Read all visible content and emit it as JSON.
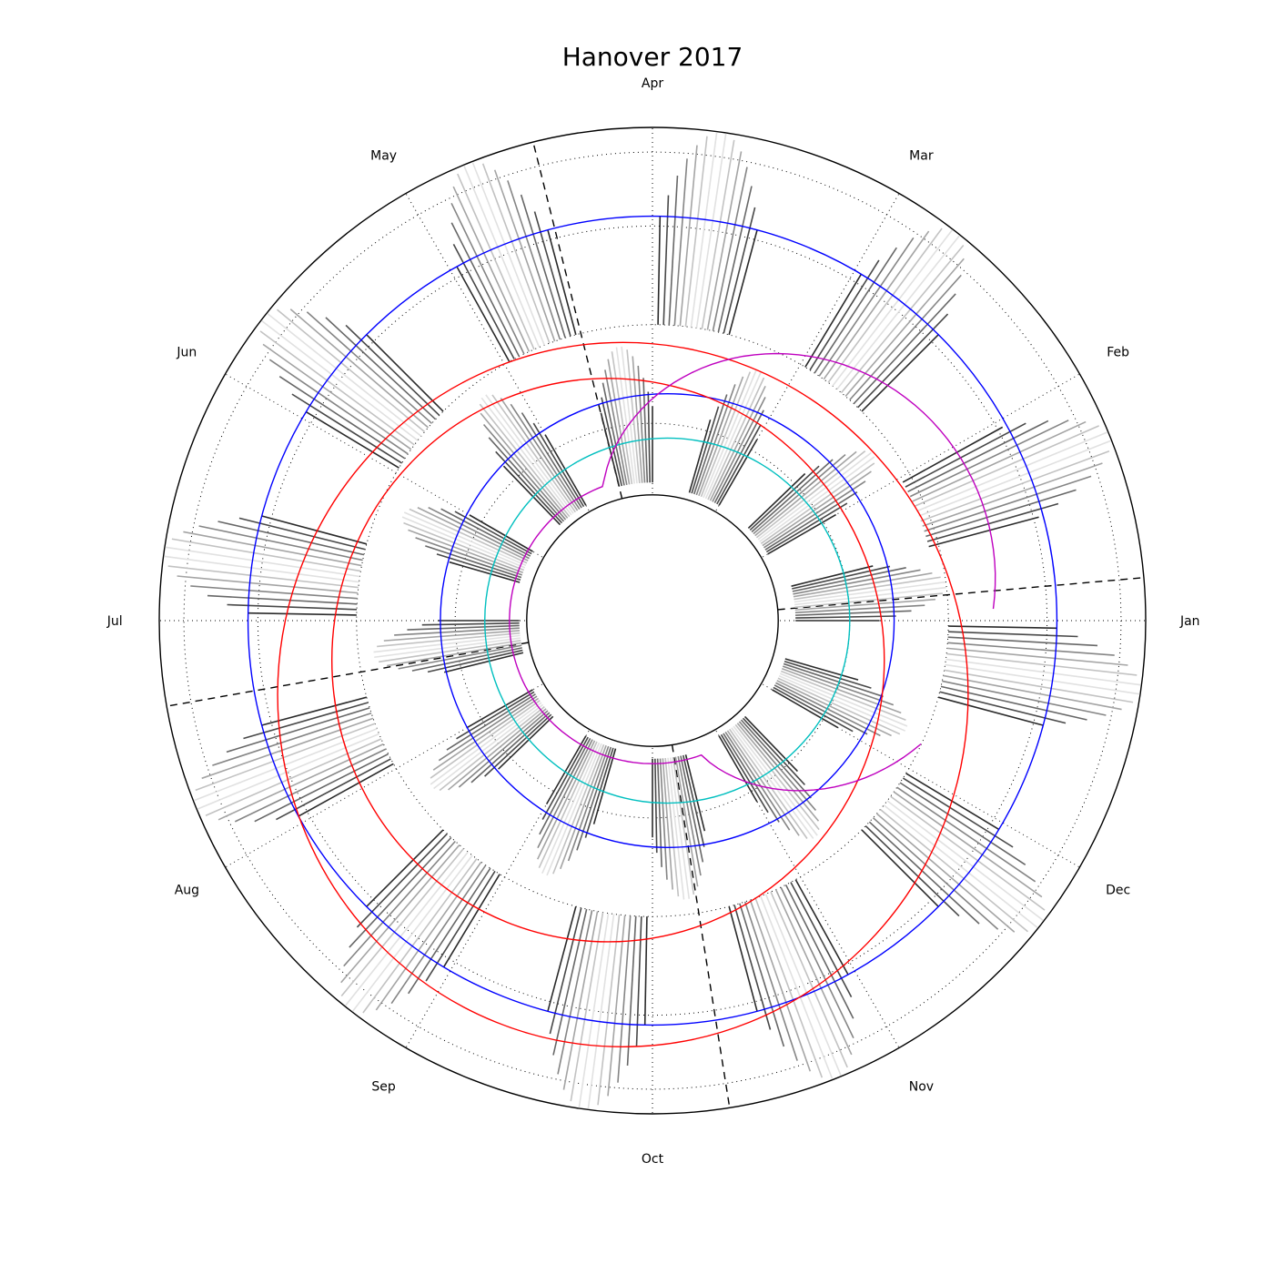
{
  "chart_data": {
    "type": "polar",
    "title": "Hanover 2017",
    "direction": "counterclockwise",
    "months": [
      "Jan",
      "Feb",
      "Mar",
      "Apr",
      "May",
      "Jun",
      "Jul",
      "Aug",
      "Sep",
      "Oct",
      "Nov",
      "Dec"
    ],
    "rings": {
      "inner_circle": 0.255,
      "outer_circle": 1.0,
      "dotted_circles": [
        0.4,
        0.6,
        0.8,
        0.95
      ]
    },
    "daily_tide_bars": {
      "color_scale": "grayscale",
      "strands": [
        {
          "month": "Jan",
          "inner": 0.29,
          "outer": 0.6
        },
        {
          "month": "Jan",
          "inner": 0.58,
          "outer": 1.0
        },
        {
          "month": "Feb",
          "inner": 0.27,
          "outer": 0.56
        },
        {
          "month": "Feb",
          "inner": 0.6,
          "outer": 1.0
        },
        {
          "month": "Mar",
          "inner": 0.27,
          "outer": 0.55
        },
        {
          "month": "Mar",
          "inner": 0.6,
          "outer": 1.0
        },
        {
          "month": "Apr",
          "inner": 0.28,
          "outer": 0.56
        },
        {
          "month": "Apr",
          "inner": 0.6,
          "outer": 1.0
        },
        {
          "month": "May",
          "inner": 0.27,
          "outer": 0.57
        },
        {
          "month": "May",
          "inner": 0.6,
          "outer": 1.0
        },
        {
          "month": "Jun",
          "inner": 0.28,
          "outer": 0.55
        },
        {
          "month": "Jun",
          "inner": 0.6,
          "outer": 1.0
        },
        {
          "month": "Jul",
          "inner": 0.27,
          "outer": 0.57
        },
        {
          "month": "Jul",
          "inner": 0.6,
          "outer": 1.0
        },
        {
          "month": "Aug",
          "inner": 0.28,
          "outer": 0.56
        },
        {
          "month": "Aug",
          "inner": 0.6,
          "outer": 1.0
        },
        {
          "month": "Sep",
          "inner": 0.27,
          "outer": 0.56
        },
        {
          "month": "Sep",
          "inner": 0.6,
          "outer": 1.0
        },
        {
          "month": "Oct",
          "inner": 0.28,
          "outer": 0.57
        },
        {
          "month": "Oct",
          "inner": 0.6,
          "outer": 1.0
        },
        {
          "month": "Nov",
          "inner": 0.27,
          "outer": 0.55
        },
        {
          "month": "Nov",
          "inner": 0.6,
          "outer": 1.0
        },
        {
          "month": "Dec",
          "inner": 0.28,
          "outer": 0.56
        },
        {
          "month": "Dec",
          "inner": 0.6,
          "outer": 1.0
        }
      ]
    },
    "series": [
      {
        "color": "#0000ff",
        "style": "circle",
        "center_offset": [
          0.0,
          0.0
        ],
        "radius": 0.82
      },
      {
        "color": "#0000ff",
        "style": "circle",
        "center_offset": [
          0.03,
          -0.0
        ],
        "radius": 0.46
      },
      {
        "color": "#00bfbf",
        "style": "circle",
        "center_offset": [
          0.03,
          0.0
        ],
        "radius": 0.37
      },
      {
        "color": "#ff0000",
        "style": "loop",
        "center_offset": [
          -0.06,
          -0.15
        ],
        "radius": 0.7
      },
      {
        "color": "#ff0000",
        "style": "loop",
        "center_offset": [
          -0.09,
          -0.08
        ],
        "radius": 0.56
      },
      {
        "color": "#bf00bf",
        "style": "daylight-curve",
        "day_span": [
          2,
          340
        ]
      }
    ],
    "dashed_lines_deg": [
      104,
      5,
      190,
      279
    ],
    "dotted_spokes_deg": [
      0,
      30,
      60,
      90,
      120,
      150,
      180,
      210,
      240,
      270,
      300,
      330
    ]
  }
}
